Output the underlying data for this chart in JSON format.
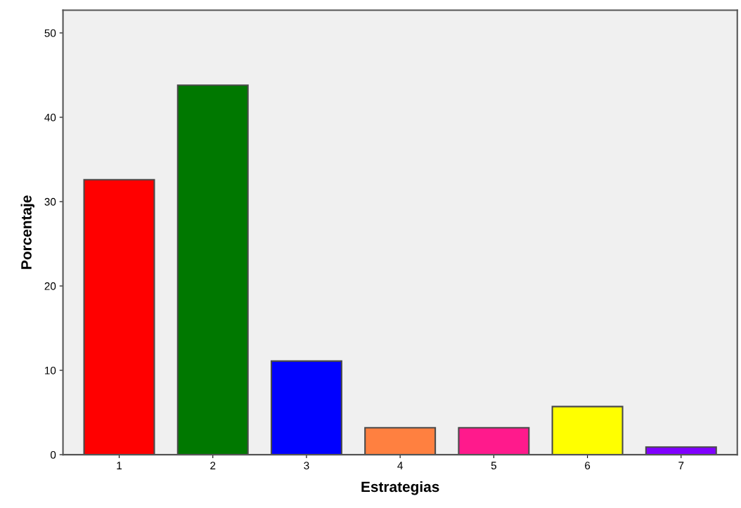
{
  "chart_data": {
    "type": "bar",
    "xlabel": "Estrategias",
    "ylabel": "Porcentaje",
    "categories": [
      "1",
      "2",
      "3",
      "4",
      "5",
      "6",
      "7"
    ],
    "values": [
      32.6,
      43.8,
      11.1,
      3.2,
      3.2,
      5.7,
      0.9
    ],
    "colors": [
      "#ff0000",
      "#007800",
      "#0000ff",
      "#ff8040",
      "#ff1a8c",
      "#ffff00",
      "#8000ff"
    ],
    "ylim": [
      0,
      52.7
    ],
    "yticks": [
      0,
      10,
      20,
      30,
      40,
      50
    ],
    "grid": false,
    "legend": false
  }
}
